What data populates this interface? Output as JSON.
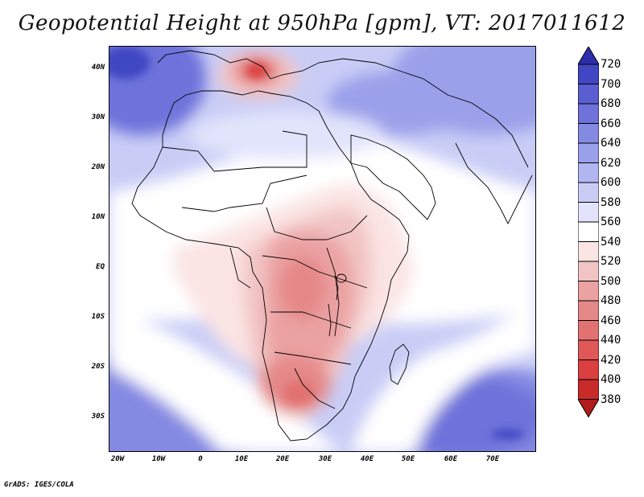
{
  "title": "Geopotential Height at 950hPa [gpm], VT: 2017011612",
  "credit": "GrADS: IGES/COLA",
  "y_axis_labels": [
    "40N",
    "30N",
    "20N",
    "10N",
    "EQ",
    "10S",
    "20S",
    "30S"
  ],
  "x_axis_labels": [
    "20W",
    "10W",
    "0",
    "10E",
    "20E",
    "30E",
    "40E",
    "50E",
    "60E",
    "70E"
  ],
  "colorbar": {
    "levels": [
      "380",
      "400",
      "420",
      "440",
      "460",
      "480",
      "500",
      "520",
      "540",
      "560",
      "580",
      "600",
      "620",
      "640",
      "660",
      "680",
      "700",
      "720"
    ],
    "colors": [
      "#b01c1c",
      "#c92a2a",
      "#db3f3f",
      "#e05858",
      "#e27272",
      "#e58888",
      "#eba2a2",
      "#f2c4c4",
      "#fbe4e4",
      "#ffffff",
      "#e2e4fb",
      "#c9cdf6",
      "#b1b6f0",
      "#9ba0ea",
      "#8489e2",
      "#6e72da",
      "#5a5ed0",
      "#4146c2",
      "#2b2fab"
    ]
  },
  "map_data": {
    "region": "Africa and Middle East",
    "lon_range": [
      -23,
      80
    ],
    "lat_range": [
      -37,
      45
    ],
    "description_regions": [
      {
        "name": "Southern Africa low",
        "value_range": [
          460,
          500
        ]
      },
      {
        "name": "Central/East Africa",
        "value_range": [
          480,
          520
        ]
      },
      {
        "name": "Italy / Mediterranean low",
        "value_range": [
          420,
          460
        ]
      },
      {
        "name": "Sahara",
        "value_range": [
          540,
          580
        ]
      },
      {
        "name": "South Atlantic high",
        "value_range": [
          600,
          640
        ]
      },
      {
        "name": "South Indian Ocean high",
        "value_range": [
          600,
          640
        ]
      },
      {
        "name": "Iran / Central Asia high",
        "value_range": [
          600,
          660
        ]
      },
      {
        "name": "NE Atlantic high",
        "value_range": [
          640,
          680
        ]
      }
    ]
  }
}
